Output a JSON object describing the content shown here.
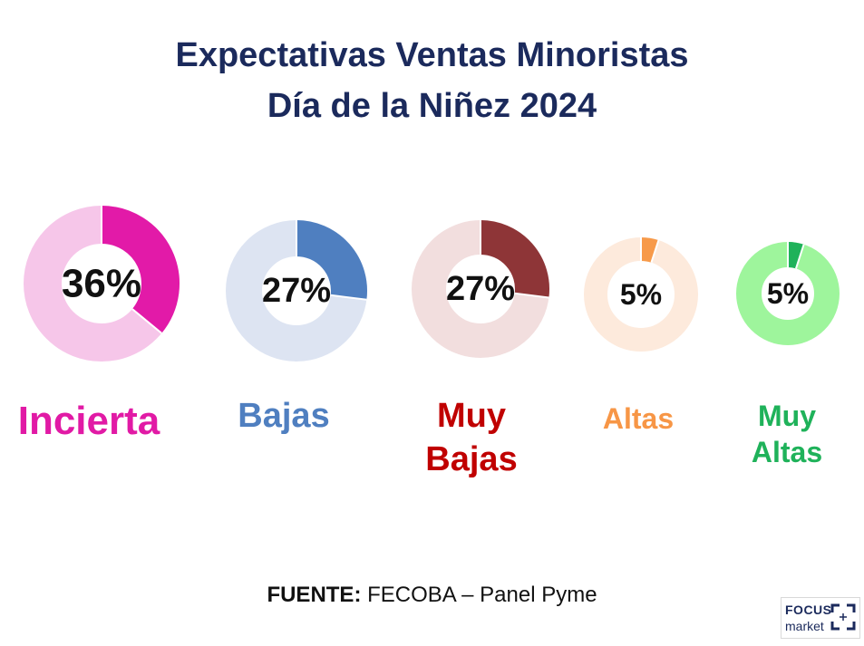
{
  "header": {
    "title_line1": "Expectativas Ventas Minoristas",
    "title_line2": "Día de la Niñez 2024"
  },
  "chart_data": {
    "type": "donut",
    "series": [
      {
        "label": "Incierta",
        "value": 36,
        "display": "36%",
        "color": "#e21aa8",
        "track": "#f6c6e9",
        "label_color": "#e11aa5"
      },
      {
        "label": "Bajas",
        "value": 27,
        "display": "27%",
        "color": "#4f7fc0",
        "track": "#dde4f2",
        "label_color": "#4f7fc0"
      },
      {
        "label": "Muy Bajas",
        "value": 27,
        "display": "27%",
        "color": "#8e3537",
        "track": "#f2dede",
        "label_color": "#c00000"
      },
      {
        "label": "Altas",
        "value": 5,
        "display": "5%",
        "color": "#f79a4a",
        "track": "#fdeadc",
        "label_color": "#f79646"
      },
      {
        "label": "Muy Altas",
        "value": 5,
        "display": "5%",
        "color": "#1fb25a",
        "track": "#9ef59c",
        "label_color": "#1fb25a"
      }
    ]
  },
  "footer": {
    "source_label": "FUENTE:",
    "source_text": " FECOBA – Panel Pyme"
  },
  "logo": {
    "line1": "FOCUS",
    "line2": "market"
  }
}
